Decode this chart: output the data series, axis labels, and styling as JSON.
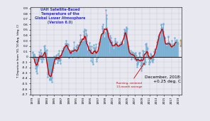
{
  "title_lines": [
    "UAH Satellite-Based",
    "Temperature of the",
    "Global Lower Atmosphere",
    "(Version 6.0)"
  ],
  "title_color": "#3333cc",
  "ylabel": "T Departure from '81-'10 Avg. (deg. C)",
  "annotation_text": "Running, centered\n13-month average",
  "annotation_color": "#cc0000",
  "december_line1": "December, 2018:",
  "december_line2": "+0.25 deg. C",
  "december_color": "#000000",
  "ylim": [
    -0.7,
    0.92
  ],
  "ytick_vals": [
    -0.7,
    -0.6,
    -0.5,
    -0.4,
    -0.3,
    -0.2,
    -0.1,
    0.0,
    0.1,
    0.2,
    0.3,
    0.4,
    0.5,
    0.6,
    0.7,
    0.8,
    0.9
  ],
  "ytick_labels": [
    "-0.7",
    "-0.6",
    "-0.5",
    "-0.4",
    "-0.3",
    "-0.2",
    "-0.1",
    "0",
    "0.1",
    "0.2",
    "0.3",
    "0.4",
    "0.5",
    "0.6",
    "0.7",
    "0.8",
    "0.9"
  ],
  "bg_color": "#e8e8f0",
  "bar_color": "#7ab0d4",
  "bar_edge_color": "#4477aa",
  "line_color": "#cc0000",
  "zero_line_color": "#000000",
  "start_year": 1979,
  "end_year": 2019,
  "xlim": [
    1978.5,
    2019.8
  ],
  "xtick_years": [
    1979,
    1981,
    1983,
    1985,
    1987,
    1989,
    1991,
    1993,
    1995,
    1997,
    1999,
    2001,
    2003,
    2005,
    2007,
    2009,
    2011,
    2013,
    2015,
    2017,
    2019
  ],
  "monthly_anomalies": [
    -0.02,
    0.07,
    0.09,
    0.02,
    0.02,
    0.04,
    0.05,
    0.01,
    -0.1,
    -0.06,
    -0.16,
    -0.22,
    -0.2,
    -0.27,
    -0.31,
    -0.17,
    -0.16,
    -0.15,
    -0.13,
    -0.07,
    -0.05,
    -0.01,
    0.04,
    0.09,
    -0.03,
    -0.01,
    0.13,
    0.04,
    0.07,
    0.06,
    -0.04,
    -0.09,
    -0.08,
    -0.01,
    -0.02,
    0.0,
    -0.01,
    -0.04,
    0.02,
    0.19,
    0.16,
    0.21,
    0.12,
    0.08,
    0.1,
    0.06,
    0.05,
    0.13,
    -0.1,
    -0.32,
    -0.37,
    -0.3,
    -0.28,
    -0.27,
    -0.26,
    -0.29,
    -0.41,
    -0.43,
    -0.41,
    -0.42,
    -0.31,
    -0.38,
    -0.43,
    -0.47,
    -0.39,
    -0.26,
    -0.28,
    -0.24,
    -0.2,
    -0.16,
    -0.08,
    -0.03,
    0.01,
    -0.12,
    -0.04,
    -0.01,
    -0.03,
    -0.04,
    0.0,
    0.02,
    0.04,
    -0.04,
    -0.11,
    -0.11,
    -0.05,
    -0.07,
    0.06,
    0.11,
    0.02,
    -0.05,
    -0.07,
    -0.12,
    -0.02,
    -0.06,
    0.04,
    0.02,
    0.11,
    0.06,
    0.12,
    0.07,
    0.11,
    0.07,
    0.15,
    0.17,
    0.18,
    0.11,
    0.09,
    0.14,
    0.22,
    0.25,
    0.3,
    0.21,
    0.23,
    0.25,
    0.2,
    0.21,
    0.23,
    0.21,
    0.24,
    0.09,
    -0.02,
    0.05,
    0.11,
    0.06,
    0.07,
    0.1,
    0.12,
    0.11,
    0.08,
    0.05,
    0.05,
    -0.01,
    0.06,
    0.08,
    0.13,
    0.28,
    0.17,
    0.15,
    0.1,
    0.08,
    0.09,
    0.11,
    0.11,
    0.2,
    0.01,
    0.08,
    0.18,
    0.08,
    0.22,
    0.15,
    0.03,
    0.0,
    0.07,
    0.21,
    0.28,
    0.22,
    0.31,
    0.4,
    0.22,
    0.32,
    0.33,
    0.27,
    0.22,
    0.25,
    0.26,
    0.24,
    0.29,
    0.28,
    0.4,
    0.47,
    0.51,
    0.48,
    0.27,
    0.25,
    0.29,
    0.43,
    0.5,
    0.4,
    0.39,
    0.29,
    0.01,
    0.1,
    0.11,
    0.07,
    0.12,
    0.14,
    0.19,
    0.1,
    0.26,
    0.2,
    0.14,
    0.13,
    0.0,
    -0.07,
    0.04,
    0.19,
    0.02,
    -0.09,
    -0.13,
    0.05,
    0.22,
    0.17,
    0.17,
    0.14,
    0.02,
    0.12,
    0.15,
    0.24,
    0.18,
    0.05,
    -0.08,
    -0.04,
    0.08,
    0.02,
    0.0,
    -0.01,
    0.12,
    0.16,
    0.25,
    0.27,
    0.26,
    0.27,
    0.33,
    0.29,
    0.29,
    0.35,
    0.31,
    0.41,
    0.41,
    0.53,
    0.56,
    0.6,
    0.53,
    0.42,
    0.47,
    0.34,
    0.35,
    0.31,
    0.34,
    0.44,
    0.54,
    0.87,
    0.78,
    0.71,
    0.54,
    0.48,
    0.44,
    0.41,
    0.45,
    0.43,
    0.31,
    0.27,
    0.05,
    0.3,
    0.37,
    0.39,
    0.35,
    0.3,
    0.3,
    0.28,
    0.26,
    0.27,
    0.21,
    0.18,
    0.14,
    0.09,
    0.12,
    0.11,
    0.14,
    0.24,
    0.28,
    0.3,
    0.34,
    0.28,
    0.25,
    0.22,
    0.21,
    0.21,
    0.22,
    0.28,
    0.17,
    0.2,
    0.15,
    0.14,
    0.17,
    0.18,
    0.23,
    0.2,
    0.19,
    0.26,
    0.22,
    0.27,
    0.27,
    0.27,
    0.25,
    0.22,
    0.24,
    0.19,
    0.17,
    0.21,
    0.44,
    0.51,
    0.41,
    0.5,
    0.44,
    0.41,
    0.47,
    0.55,
    0.53,
    0.5,
    0.53,
    0.28,
    0.18,
    0.16,
    0.2,
    0.15,
    0.12,
    0.06,
    0.06,
    0.04,
    0.02,
    0.02,
    0.08,
    0.11,
    -0.04,
    0.02,
    0.09,
    0.08,
    0.07,
    0.07,
    0.0,
    0.01,
    0.03,
    -0.03,
    0.06,
    0.06,
    -0.05,
    -0.03,
    0.04,
    0.08,
    0.02,
    -0.07,
    -0.12,
    -0.15,
    -0.19,
    -0.11,
    -0.14,
    -0.1,
    -0.06,
    0.0,
    0.06,
    0.08,
    0.08,
    0.01,
    -0.08,
    -0.16,
    -0.21,
    -0.25,
    -0.21,
    -0.17,
    -0.09,
    0.04,
    0.11,
    0.1,
    0.06,
    0.0,
    -0.04,
    -0.1,
    -0.14,
    -0.14,
    -0.1,
    0.1,
    0.24,
    0.25,
    0.22,
    0.18,
    0.14,
    0.07,
    0.15,
    0.08,
    0.02,
    -0.03,
    -0.1,
    -0.13,
    -0.09,
    -0.09,
    -0.04,
    0.05,
    0.06,
    0.04,
    0.01,
    -0.01,
    -0.05,
    -0.07,
    -0.09,
    -0.07,
    -0.04,
    0.01,
    0.09,
    0.1,
    0.14,
    0.07,
    0.03,
    0.06,
    0.09,
    0.07,
    0.08,
    0.1,
    0.14,
    0.27,
    0.27,
    0.32,
    0.34,
    0.38,
    0.41,
    0.4,
    0.37,
    0.35,
    0.31,
    0.32,
    0.45,
    0.59,
    0.52,
    0.61,
    0.55,
    0.51,
    0.52,
    0.5,
    0.61,
    0.62,
    0.47,
    0.38,
    0.3,
    0.35,
    0.35,
    0.23,
    0.18,
    0.21,
    0.19,
    0.16,
    0.18,
    0.2,
    0.19,
    0.26,
    0.24,
    0.37,
    0.38,
    0.27,
    0.21,
    0.25,
    0.22,
    0.23,
    0.17,
    0.2,
    0.15,
    0.2,
    0.17,
    0.3,
    0.24,
    0.11,
    0.14,
    0.17,
    0.12,
    0.19,
    0.18,
    0.25,
    0.35,
    0.24,
    0.21,
    0.21,
    0.27,
    0.3,
    0.28,
    0.26,
    0.32,
    0.28,
    0.25,
    0.25
  ]
}
